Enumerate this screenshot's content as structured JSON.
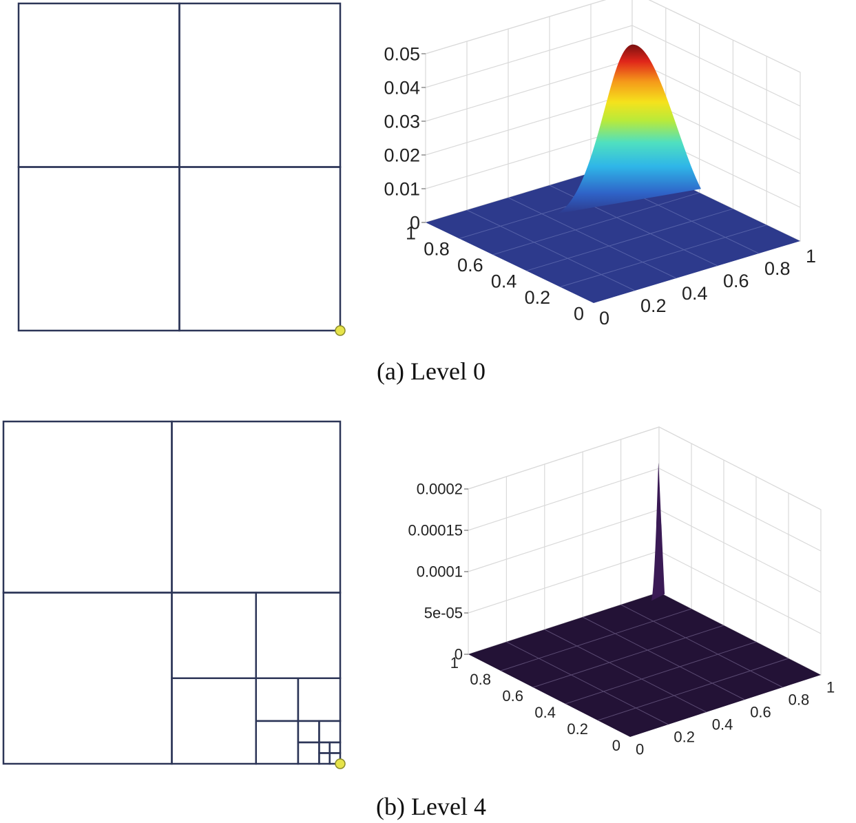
{
  "captions": {
    "level0": "(a) Level 0",
    "level4": "(b) Level 4"
  },
  "colors": {
    "mesh_line": "#2c3557",
    "corner_marker": "#e6e34a",
    "grid_line": "#d9d9d9",
    "floor_level0": "#2d3a8c",
    "floor_level4": "#231236",
    "spike_level4": "#3a1a55"
  },
  "chart_data": [
    {
      "type": "mesh",
      "panel": "Level 0 mesh",
      "domain": [
        [
          0,
          1
        ],
        [
          0,
          1
        ]
      ],
      "cells": [
        [
          0,
          0,
          0.5
        ],
        [
          0.5,
          0,
          0.5
        ],
        [
          0,
          0.5,
          0.5
        ],
        [
          0.5,
          0.5,
          0.5
        ]
      ],
      "marker": [
        1,
        0
      ]
    },
    {
      "type": "surface",
      "panel": "Level 0 solution",
      "colormap": "jet",
      "zlim": [
        0,
        0.05
      ],
      "z_ticks": [
        "0",
        "0.01",
        "0.02",
        "0.03",
        "0.04",
        "0.05"
      ],
      "x_ticks": [
        "0",
        "0.2",
        "0.4",
        "0.6",
        "0.8",
        "1"
      ],
      "y_ticks": [
        "0",
        "0.2",
        "0.4",
        "0.6",
        "0.8",
        "1"
      ],
      "grid": true,
      "peak": {
        "x": 0.8,
        "y": 0.75,
        "z": 0.044
      }
    },
    {
      "type": "mesh",
      "panel": "Level 4 mesh",
      "domain": [
        [
          0,
          1
        ],
        [
          0,
          1
        ]
      ],
      "cells": [
        [
          0,
          0.5,
          0.5
        ],
        [
          0.5,
          0.5,
          0.5
        ],
        [
          0,
          0,
          0.5
        ],
        [
          0.5,
          0.25,
          0.25
        ],
        [
          0.75,
          0.25,
          0.25
        ],
        [
          0.5,
          0,
          0.25
        ],
        [
          0.75,
          0.125,
          0.125
        ],
        [
          0.875,
          0.125,
          0.125
        ],
        [
          0.75,
          0,
          0.125
        ],
        [
          0.875,
          0.0625,
          0.0625
        ],
        [
          0.9375,
          0.0625,
          0.0625
        ],
        [
          0.875,
          0,
          0.0625
        ],
        [
          0.9375,
          0.03125,
          0.03125
        ],
        [
          0.96875,
          0.03125,
          0.03125
        ],
        [
          0.9375,
          0,
          0.03125
        ],
        [
          0.96875,
          0,
          0.03125
        ]
      ],
      "marker": [
        1,
        0
      ]
    },
    {
      "type": "surface",
      "panel": "Level 4 solution",
      "colormap": "dark",
      "zlim": [
        0,
        0.0002
      ],
      "z_ticks": [
        "0",
        "5e-05",
        "0.0001",
        "0.00015",
        "0.0002"
      ],
      "x_ticks": [
        "0",
        "0.2",
        "0.4",
        "0.6",
        "0.8",
        "1"
      ],
      "y_ticks": [
        "0",
        "0.2",
        "0.4",
        "0.6",
        "0.8",
        "1"
      ],
      "grid": true,
      "peak": {
        "x": 0.98,
        "y": 0.98,
        "z": 0.00016
      }
    }
  ]
}
